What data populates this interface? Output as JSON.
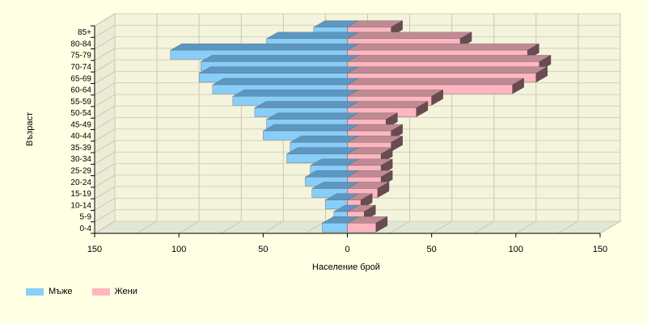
{
  "chart_data": {
    "type": "bar",
    "subtype": "population-pyramid-3d",
    "categories": [
      "0-4",
      "5-9",
      "10-14",
      "15-19",
      "20-24",
      "25-29",
      "30-34",
      "35-39",
      "40-44",
      "45-49",
      "50-54",
      "55-59",
      "60-64",
      "65-69",
      "70-74",
      "75-79",
      "80-84",
      "85+"
    ],
    "series": [
      {
        "name": "Мъже",
        "side": "left",
        "color": "#87cefa",
        "values": [
          15,
          8,
          13,
          21,
          25,
          22,
          36,
          34,
          50,
          48,
          55,
          68,
          80,
          88,
          87,
          105,
          48,
          20
        ]
      },
      {
        "name": "Жени",
        "side": "right",
        "color": "#ffb6c1",
        "values": [
          17,
          10,
          8,
          18,
          20,
          20,
          20,
          26,
          26,
          23,
          41,
          50,
          98,
          112,
          114,
          107,
          67,
          26
        ]
      }
    ],
    "xlabel": "Население брой",
    "ylabel": "Възраст",
    "xlim": [
      -150,
      150
    ],
    "xticks": [
      150,
      100,
      50,
      0,
      50,
      100,
      150
    ],
    "grid": true,
    "legend_position": "bottom-left"
  },
  "legend": [
    {
      "label": "Мъже",
      "color": "#87cefa"
    },
    {
      "label": "Жени",
      "color": "#ffb6c1"
    }
  ]
}
